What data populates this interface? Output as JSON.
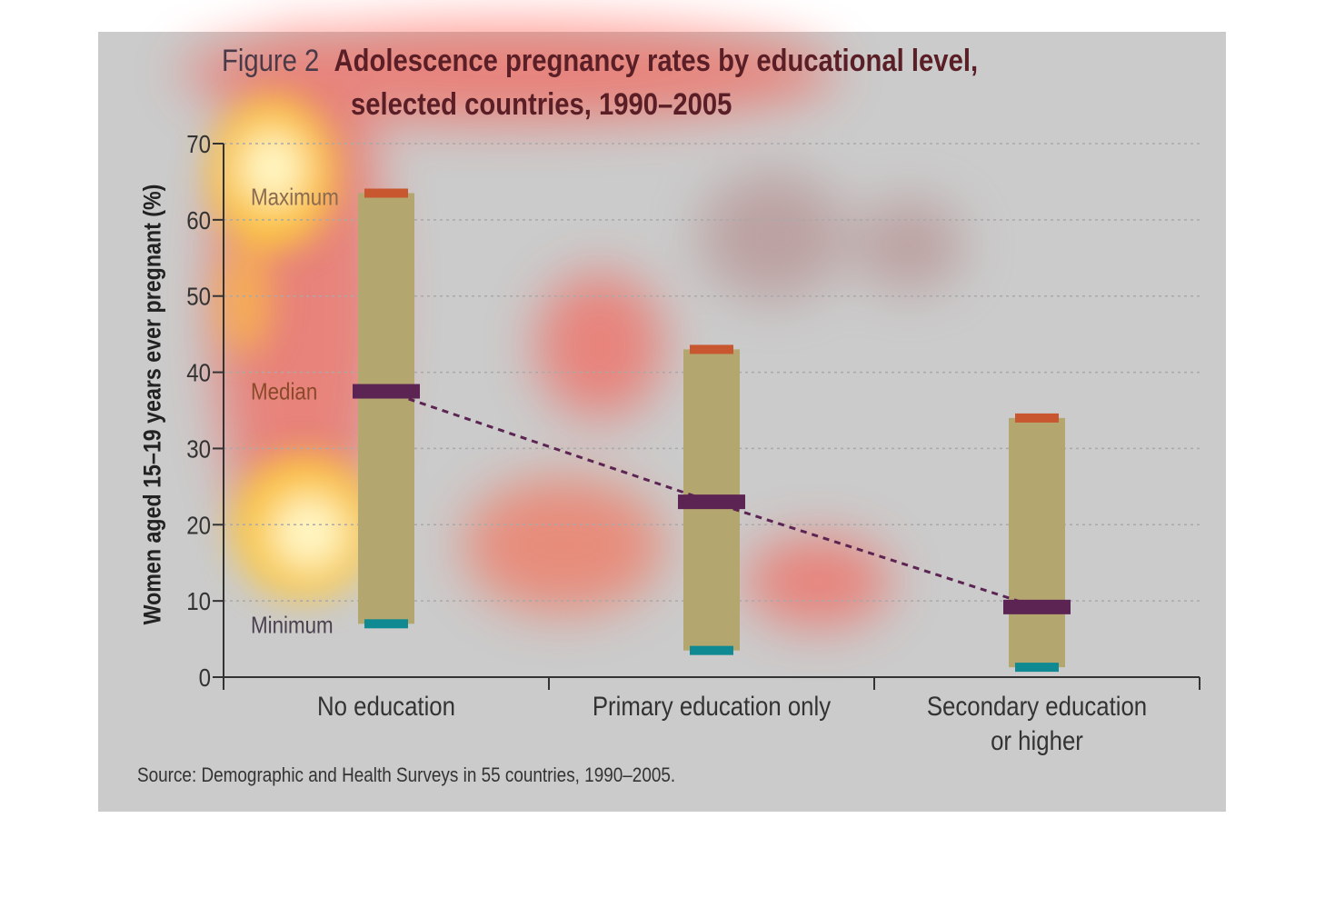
{
  "title": {
    "figure_label": "Figure 2",
    "line1": "Adolescence pregnancy rates by educational level,",
    "line2": "selected countries, 1990–2005"
  },
  "source": "Source: Demographic and Health Surveys in 55 countries, 1990–2005.",
  "colors": {
    "panel_bg": "#cbcbcb",
    "range_bar": "#b3a66e",
    "maximum": "#c8562e",
    "median": "#5c2452",
    "minimum": "#0f8a92",
    "trend_line": "#5c2452",
    "gridline": "#a9a9a9"
  },
  "chart_data": {
    "type": "range",
    "ylabel": "Women aged 15–19 years ever pregnant (%)",
    "xlabel": "",
    "ylim": [
      0,
      70
    ],
    "yticks": [
      "0",
      "10",
      "20",
      "30",
      "40",
      "50",
      "60",
      "70"
    ],
    "grid": true,
    "categories": [
      [
        "No education"
      ],
      [
        "Primary education only"
      ],
      [
        "Secondary education",
        "or higher"
      ]
    ],
    "series": [
      {
        "name": "Maximum",
        "values": [
          63.5,
          43,
          34
        ]
      },
      {
        "name": "Median",
        "values": [
          37.5,
          23,
          9.2
        ]
      },
      {
        "name": "Minimum",
        "values": [
          7,
          3.5,
          1.3
        ]
      }
    ],
    "annotations": [
      "Maximum",
      "Median",
      "Minimum"
    ],
    "trend_line": "median, dashed"
  }
}
